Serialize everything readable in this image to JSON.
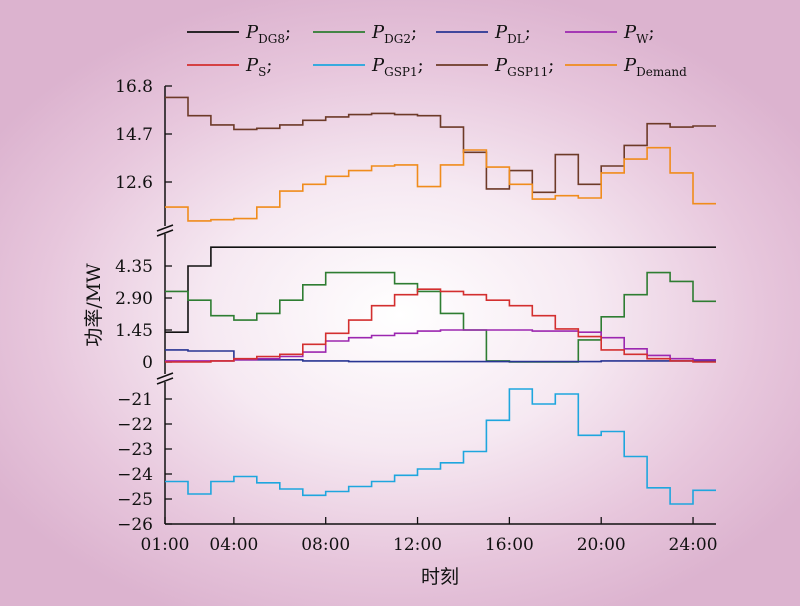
{
  "chart_data": {
    "type": "line",
    "ylabel": "功率/MW",
    "xlabel": "时刻",
    "x_ticks": [
      "01:00",
      "04:00",
      "08:00",
      "12:00",
      "16:00",
      "20:00",
      "24:00"
    ],
    "x_tick_hours": [
      1,
      4,
      8,
      12,
      16,
      20,
      24
    ],
    "xlim_hours": [
      1,
      25
    ],
    "panels": [
      {
        "name": "top",
        "ylim": [
          10.8,
          16.8
        ],
        "y_ticks": [
          12.6,
          14.7,
          16.8
        ],
        "y_tick_labels": [
          "12.6",
          "14.7",
          "16.8"
        ]
      },
      {
        "name": "middle",
        "ylim": [
          0,
          5.2
        ],
        "y_ticks": [
          0,
          1.45,
          2.9,
          4.35
        ],
        "y_tick_labels": [
          "0",
          "1.45",
          "2.90",
          "4.35"
        ]
      },
      {
        "name": "bottom",
        "ylim": [
          -26,
          -20.4
        ],
        "y_ticks": [
          -21,
          -22,
          -23,
          -24,
          -25,
          -26
        ],
        "y_tick_labels": [
          "−21",
          "−22",
          "−23",
          "−24",
          "−25",
          "−26"
        ]
      }
    ],
    "series": [
      {
        "key": "DG8",
        "name_main": "P",
        "name_sub": "DG8",
        "suffix": ";",
        "color": "#111111",
        "panel": "middle",
        "values": [
          1.35,
          4.35,
          5.2,
          5.2,
          5.2,
          5.2,
          5.2,
          5.2,
          5.2,
          5.2,
          5.2,
          5.2,
          5.2,
          5.2,
          5.2,
          5.2,
          5.2,
          5.2,
          5.2,
          5.2,
          5.2,
          5.2,
          5.2,
          5.2
        ]
      },
      {
        "key": "DG2",
        "name_main": "P",
        "name_sub": "DG2",
        "suffix": ";",
        "color": "#2e7d32",
        "panel": "middle",
        "values": [
          3.2,
          2.8,
          2.1,
          1.9,
          2.2,
          2.8,
          3.5,
          4.05,
          4.05,
          4.05,
          3.55,
          3.2,
          2.2,
          1.45,
          0.05,
          0,
          0,
          0,
          1.0,
          2.05,
          3.05,
          4.05,
          3.65,
          2.75
        ]
      },
      {
        "key": "DL",
        "name_main": "P",
        "name_sub": "DL",
        "suffix": ";",
        "color": "#283593",
        "panel": "middle",
        "values": [
          0.55,
          0.5,
          0.5,
          0.1,
          0.1,
          0.1,
          0.05,
          0.05,
          0.02,
          0.02,
          0.02,
          0.02,
          0.02,
          0.02,
          0.02,
          0.02,
          0.02,
          0.02,
          0.02,
          0.05,
          0.05,
          0.05,
          0.05,
          0.05
        ]
      },
      {
        "key": "W",
        "name_main": "P",
        "name_sub": "W",
        "suffix": ";",
        "color": "#9c27b0",
        "panel": "middle",
        "values": [
          0.05,
          0.05,
          0.05,
          0.1,
          0.15,
          0.25,
          0.45,
          0.95,
          1.1,
          1.2,
          1.3,
          1.4,
          1.45,
          1.45,
          1.45,
          1.45,
          1.4,
          1.4,
          1.35,
          1.1,
          0.6,
          0.3,
          0.15,
          0.1
        ]
      },
      {
        "key": "S",
        "name_main": "P",
        "name_sub": "S",
        "suffix": ";",
        "color": "#d32f2f",
        "panel": "middle",
        "values": [
          0,
          0,
          0.05,
          0.15,
          0.25,
          0.35,
          0.8,
          1.3,
          1.9,
          2.55,
          3.05,
          3.3,
          3.2,
          3.05,
          2.8,
          2.55,
          2.1,
          1.5,
          1.15,
          0.55,
          0.35,
          0.15,
          0.05,
          0
        ]
      },
      {
        "key": "GSP1",
        "name_main": "P",
        "name_sub": "GSP1",
        "suffix": ";",
        "color": "#1ea6de",
        "panel": "bottom",
        "values": [
          -24.3,
          -24.8,
          -24.3,
          -24.1,
          -24.35,
          -24.6,
          -24.85,
          -24.7,
          -24.5,
          -24.3,
          -24.05,
          -23.8,
          -23.55,
          -23.1,
          -21.85,
          -20.6,
          -21.2,
          -20.8,
          -22.45,
          -22.3,
          -23.3,
          -24.55,
          -25.2,
          -24.65
        ]
      },
      {
        "key": "GSP11",
        "name_main": "P",
        "name_sub": "GSP11",
        "suffix": ";",
        "color": "#6d3a28",
        "panel": "top",
        "values": [
          16.3,
          15.5,
          15.1,
          14.9,
          14.95,
          15.1,
          15.3,
          15.45,
          15.55,
          15.6,
          15.55,
          15.5,
          15.0,
          13.9,
          12.3,
          13.1,
          12.15,
          13.8,
          12.5,
          13.3,
          14.2,
          15.15,
          15.0,
          15.05
        ]
      },
      {
        "key": "Demand",
        "name_main": "P",
        "name_sub": "Demand",
        "suffix": "",
        "color": "#f08c1c",
        "panel": "top",
        "values": [
          11.5,
          10.9,
          10.95,
          11.0,
          11.5,
          12.2,
          12.5,
          12.85,
          13.1,
          13.3,
          13.35,
          12.4,
          13.35,
          14.0,
          13.25,
          12.5,
          11.85,
          12.0,
          11.9,
          13.0,
          13.6,
          14.1,
          13.0,
          11.65
        ]
      }
    ],
    "legend_placement": "top",
    "grid": false
  }
}
